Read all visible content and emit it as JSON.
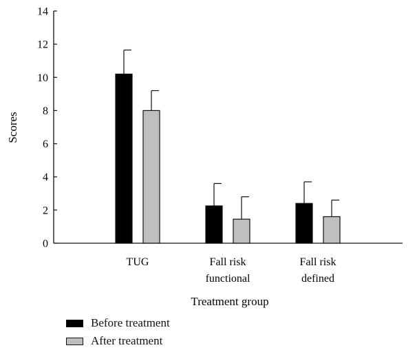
{
  "chart_data": {
    "type": "bar",
    "title": "",
    "xlabel": "Treatment group",
    "ylabel": "Scores",
    "categories": [
      [
        "TUG"
      ],
      [
        "Fall risk",
        "functional"
      ],
      [
        "Fall risk",
        "defined"
      ]
    ],
    "ylim": [
      0,
      14
    ],
    "yticks": [
      0,
      2,
      4,
      6,
      8,
      10,
      12,
      14
    ],
    "grid": false,
    "legend_position": "bottom-left",
    "series": [
      {
        "name": "Before treatment",
        "color": "#000000",
        "values": [
          10.2,
          2.25,
          2.4
        ],
        "errors": [
          1.45,
          1.35,
          1.3
        ]
      },
      {
        "name": "After treatment",
        "color": "#bfbfbf",
        "values": [
          8.0,
          1.45,
          1.6
        ],
        "errors": [
          1.2,
          1.35,
          1.0
        ]
      }
    ]
  }
}
